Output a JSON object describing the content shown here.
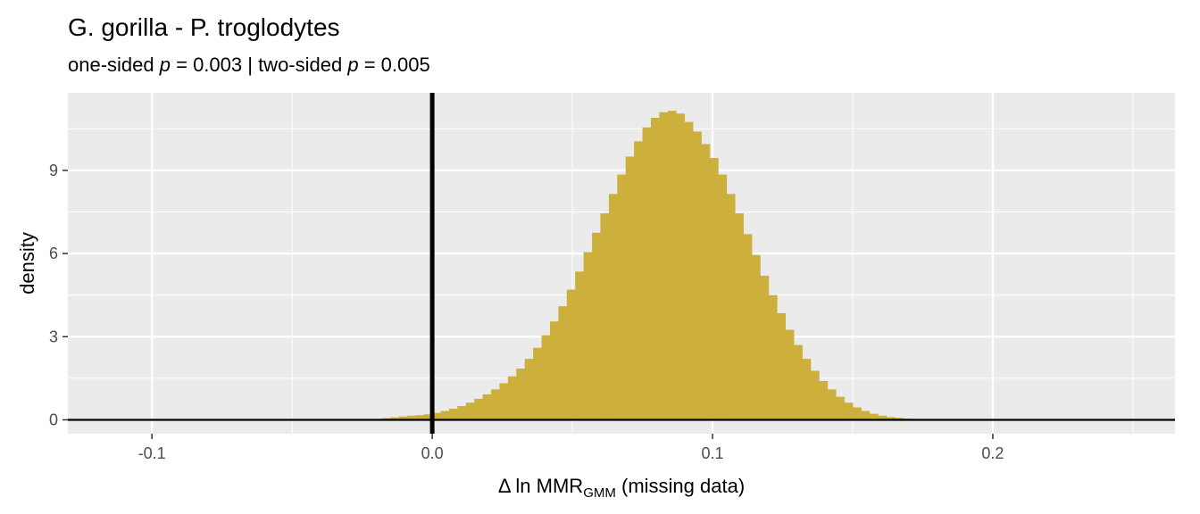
{
  "chart_data": {
    "type": "bar",
    "title": "G. gorilla - P. troglodytes",
    "subtitle": {
      "part1": "one-sided ",
      "p1": "p",
      "part2": " = 0.003 | two-sided ",
      "p2": "p",
      "part3": " = 0.005"
    },
    "xlabel": {
      "pre": "Δ ln MMR",
      "sub": "GMM",
      "post": " (missing data)"
    },
    "ylabel": "density",
    "xlim": [
      -0.13,
      0.265
    ],
    "ylim": [
      -0.5,
      11.8
    ],
    "x_ticks": [
      -0.1,
      0.0,
      0.1,
      0.2
    ],
    "x_tick_labels": [
      "-0.1",
      "0.0",
      "0.1",
      "0.2"
    ],
    "y_ticks": [
      0,
      3,
      6,
      9
    ],
    "y_tick_labels": [
      "0",
      "3",
      "6",
      "9"
    ],
    "grid": true,
    "vline_x": 0.0,
    "hline_y": 0.0,
    "bar_color": "#CDB03C",
    "panel_color": "#EBEBEB",
    "bins": {
      "start": -0.03,
      "width": 0.003,
      "values": [
        0.0,
        0.01,
        0.02,
        0.03,
        0.06,
        0.09,
        0.12,
        0.15,
        0.17,
        0.2,
        0.25,
        0.32,
        0.4,
        0.5,
        0.62,
        0.76,
        0.92,
        1.1,
        1.32,
        1.57,
        1.85,
        2.2,
        2.6,
        3.05,
        3.55,
        4.1,
        4.7,
        5.35,
        6.05,
        6.75,
        7.45,
        8.15,
        8.85,
        9.5,
        10.05,
        10.55,
        10.9,
        11.1,
        11.15,
        11.05,
        10.75,
        10.4,
        9.95,
        9.45,
        8.85,
        8.15,
        7.45,
        6.7,
        5.95,
        5.2,
        4.5,
        3.85,
        3.25,
        2.7,
        2.2,
        1.77,
        1.4,
        1.1,
        0.83,
        0.62,
        0.45,
        0.32,
        0.22,
        0.15,
        0.1,
        0.07,
        0.04,
        0.02,
        0.01,
        0.0
      ]
    }
  }
}
